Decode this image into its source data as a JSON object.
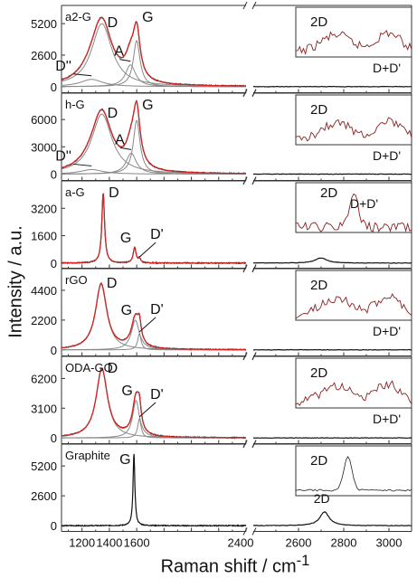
{
  "figure": {
    "ylabel": "Intensity / a.u.",
    "xlabel_main": "Raman shift / cm",
    "xlabel_sup": "-1"
  },
  "chart_data": [
    {
      "type": "line",
      "name": "a2-G",
      "title": "a2-G",
      "ylim": [
        -500,
        6700
      ],
      "yticks": [
        0,
        2600,
        5200
      ],
      "xlim_left": [
        1050,
        2400
      ],
      "xlim_right": [
        2400,
        3100
      ],
      "peaks": [
        {
          "center": 1345,
          "height": 5200,
          "width": 90,
          "label": "D"
        },
        {
          "center": 1270,
          "height": 600,
          "width": 100,
          "label": "D''"
        },
        {
          "center": 1555,
          "height": 1800,
          "width": 45,
          "label": "A"
        },
        {
          "center": 1600,
          "height": 3800,
          "width": 30,
          "label": "G"
        }
      ],
      "inset_labels": [
        "2D",
        "D+D'"
      ]
    },
    {
      "type": "line",
      "name": "h-G",
      "title": "h-G",
      "ylim": [
        -700,
        8900
      ],
      "yticks": [
        0,
        3000,
        6000
      ],
      "xlim_left": [
        1050,
        2400
      ],
      "xlim_right": [
        2400,
        3100
      ],
      "peaks": [
        {
          "center": 1345,
          "height": 6600,
          "width": 90,
          "label": "D"
        },
        {
          "center": 1270,
          "height": 500,
          "width": 100,
          "label": "D''"
        },
        {
          "center": 1560,
          "height": 2300,
          "width": 45,
          "label": "A"
        },
        {
          "center": 1600,
          "height": 5900,
          "width": 30,
          "label": "G"
        }
      ],
      "inset_labels": [
        "2D",
        "D+D'"
      ]
    },
    {
      "type": "line",
      "name": "a-G",
      "title": "a-G",
      "ylim": [
        -300,
        4800
      ],
      "yticks": [
        0,
        1600,
        3200
      ],
      "xlim_left": [
        1050,
        2400
      ],
      "xlim_right": [
        2400,
        3100
      ],
      "peaks": [
        {
          "center": 1355,
          "height": 4100,
          "width": 12,
          "label": "D"
        },
        {
          "center": 1585,
          "height": 900,
          "width": 12,
          "label": "G"
        },
        {
          "center": 1620,
          "height": 250,
          "width": 10,
          "label": "D'"
        },
        {
          "center": 2700,
          "height": 300,
          "width": 30
        }
      ],
      "inset_labels": [
        "2D",
        "D+D'"
      ]
    },
    {
      "type": "line",
      "name": "rGO",
      "title": "rGO",
      "ylim": [
        -450,
        6000
      ],
      "yticks": [
        0,
        2200,
        4400
      ],
      "xlim_left": [
        1050,
        2400
      ],
      "xlim_right": [
        2400,
        3100
      ],
      "peaks": [
        {
          "center": 1340,
          "height": 4850,
          "width": 50,
          "label": "D"
        },
        {
          "center": 1590,
          "height": 2200,
          "width": 35,
          "label": "G"
        },
        {
          "center": 1620,
          "height": 1200,
          "width": 15,
          "label": "D'"
        }
      ],
      "inset_labels": [
        "2D",
        "D+D'"
      ]
    },
    {
      "type": "line",
      "name": "ODA-GO",
      "title": "ODA-GO",
      "ylim": [
        -600,
        8500
      ],
      "yticks": [
        0,
        3100,
        6200
      ],
      "xlim_left": [
        1050,
        2400
      ],
      "xlim_right": [
        2400,
        3100
      ],
      "peaks": [
        {
          "center": 1345,
          "height": 7200,
          "width": 50,
          "label": "D"
        },
        {
          "center": 1595,
          "height": 3900,
          "width": 30,
          "label": "G"
        },
        {
          "center": 1620,
          "height": 2000,
          "width": 15,
          "label": "D'"
        }
      ],
      "inset_labels": [
        "2D",
        "D+D'"
      ]
    },
    {
      "type": "line",
      "name": "Graphite",
      "title": "Graphite",
      "ylim": [
        -500,
        7100
      ],
      "yticks": [
        0,
        2600,
        5200
      ],
      "xlim_left": [
        1050,
        2400
      ],
      "xlim_right": [
        2400,
        3100
      ],
      "xticks_left": [
        1200,
        1400,
        1600
      ],
      "xticks_left_extra": [
        2400
      ],
      "xticks_right": [
        2600,
        2800,
        3000
      ],
      "peaks": [
        {
          "center": 1580,
          "height": 6300,
          "width": 8,
          "label": "G"
        },
        {
          "center": 2715,
          "height": 1200,
          "width": 25,
          "label": "2D"
        }
      ],
      "inset_labels": [
        "2D"
      ]
    }
  ]
}
